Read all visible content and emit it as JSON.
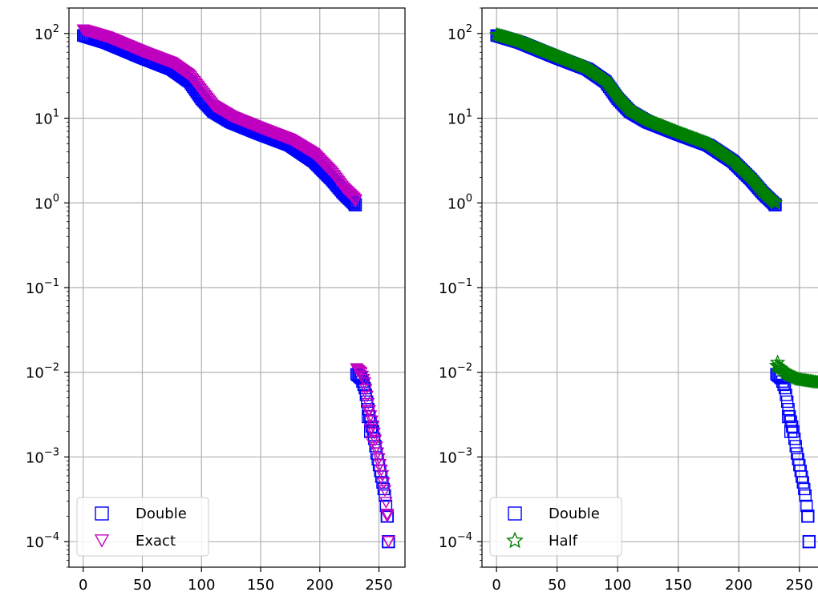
{
  "chart_data": [
    {
      "type": "scatter",
      "xlabel": "",
      "ylabel": "",
      "xlim": [
        -12,
        272
      ],
      "ylim": [
        5e-05,
        200
      ],
      "yscale": "log",
      "grid": true,
      "legend_placement": "lower-left",
      "x_ticks": [
        0,
        50,
        100,
        150,
        200,
        250
      ],
      "y_ticks": [
        {
          "value": 100,
          "base": "10",
          "exp": "2"
        },
        {
          "value": 10,
          "base": "10",
          "exp": "1"
        },
        {
          "value": 1,
          "base": "10",
          "exp": "0"
        },
        {
          "value": 0.1,
          "base": "10",
          "exp": "−1"
        },
        {
          "value": 0.01,
          "base": "10",
          "exp": "−2"
        },
        {
          "value": 0.001,
          "base": "10",
          "exp": "−3"
        },
        {
          "value": 0.0001,
          "base": "10",
          "exp": "−4"
        }
      ],
      "series": [
        {
          "name": "Double",
          "marker": "square-open",
          "color": "#0000ff",
          "curve_knots": [
            [
              0,
              95
            ],
            [
              20,
              78
            ],
            [
              50,
              52
            ],
            [
              75,
              38
            ],
            [
              90,
              27
            ],
            [
              100,
              17
            ],
            [
              110,
              12
            ],
            [
              125,
              9
            ],
            [
              150,
              6.5
            ],
            [
              175,
              4.8
            ],
            [
              195,
              3.1
            ],
            [
              210,
              1.9
            ],
            [
              220,
              1.3
            ],
            [
              230,
              0.95
            ],
            [
              231,
              0.0095
            ],
            [
              235,
              0.0085
            ],
            [
              238,
              0.0065
            ],
            [
              240,
              0.0045
            ],
            [
              242,
              0.003
            ],
            [
              245,
              0.002
            ],
            [
              248,
              0.0011
            ],
            [
              250,
              0.0008
            ],
            [
              253,
              0.0005
            ],
            [
              255,
              0.00035
            ],
            [
              257,
              0.0002
            ],
            [
              258,
              0.0001
            ]
          ],
          "points": [
            [
              230,
              0.95
            ],
            [
              257,
              0.0002
            ],
            [
              258,
              0.0001
            ],
            [
              241,
              0.003
            ],
            [
              243,
              0.002
            ]
          ]
        },
        {
          "name": "Exact",
          "marker": "triangle-down-open",
          "color": "#bf00bf",
          "curve_knots": [
            [
              0,
              110
            ],
            [
              20,
              91
            ],
            [
              50,
              61
            ],
            [
              75,
              45
            ],
            [
              90,
              32
            ],
            [
              100,
              21
            ],
            [
              110,
              14
            ],
            [
              125,
              10.5
            ],
            [
              150,
              7.6
            ],
            [
              175,
              5.6
            ],
            [
              195,
              3.8
            ],
            [
              210,
              2.3
            ],
            [
              220,
              1.5
            ],
            [
              230,
              1.1
            ],
            [
              231,
              0.011
            ],
            [
              235,
              0.0098
            ],
            [
              238,
              0.0075
            ],
            [
              240,
              0.0052
            ],
            [
              242,
              0.0035
            ],
            [
              245,
              0.0023
            ],
            [
              248,
              0.0013
            ],
            [
              250,
              0.00095
            ],
            [
              253,
              0.0006
            ],
            [
              255,
              0.0004
            ],
            [
              257,
              0.00021
            ],
            [
              258,
              0.0001
            ]
          ],
          "points": [
            [
              230,
              1.05
            ],
            [
              257,
              0.0002
            ],
            [
              258,
              0.0001
            ],
            [
              241,
              0.0035
            ],
            [
              243,
              0.0021
            ],
            [
              244,
              0.0015
            ]
          ]
        }
      ]
    },
    {
      "type": "scatter",
      "xlabel": "",
      "ylabel": "",
      "xlim": [
        -12,
        272
      ],
      "ylim": [
        5e-05,
        200
      ],
      "yscale": "log",
      "grid": true,
      "legend_placement": "lower-left",
      "x_ticks": [
        0,
        50,
        100,
        150,
        200,
        250
      ],
      "y_ticks": [
        {
          "value": 100,
          "base": "10",
          "exp": "2"
        },
        {
          "value": 10,
          "base": "10",
          "exp": "1"
        },
        {
          "value": 1,
          "base": "10",
          "exp": "0"
        },
        {
          "value": 0.1,
          "base": "10",
          "exp": "−1"
        },
        {
          "value": 0.01,
          "base": "10",
          "exp": "−2"
        },
        {
          "value": 0.001,
          "base": "10",
          "exp": "−3"
        },
        {
          "value": 0.0001,
          "base": "10",
          "exp": "−4"
        }
      ],
      "series": [
        {
          "name": "Double",
          "marker": "square-open",
          "color": "#0000ff",
          "curve_knots": [
            [
              0,
              95
            ],
            [
              20,
              78
            ],
            [
              50,
              52
            ],
            [
              75,
              38
            ],
            [
              90,
              27
            ],
            [
              100,
              17
            ],
            [
              110,
              12
            ],
            [
              125,
              9
            ],
            [
              150,
              6.5
            ],
            [
              175,
              4.8
            ],
            [
              195,
              3.1
            ],
            [
              210,
              1.9
            ],
            [
              220,
              1.3
            ],
            [
              230,
              0.95
            ],
            [
              231,
              0.0095
            ],
            [
              235,
              0.0085
            ],
            [
              238,
              0.0065
            ],
            [
              240,
              0.0045
            ],
            [
              242,
              0.003
            ],
            [
              245,
              0.002
            ],
            [
              248,
              0.0011
            ],
            [
              250,
              0.0008
            ],
            [
              253,
              0.0005
            ],
            [
              255,
              0.00035
            ],
            [
              257,
              0.0002
            ],
            [
              258,
              0.0001
            ]
          ],
          "points": [
            [
              230,
              0.95
            ],
            [
              257,
              0.0002
            ],
            [
              258,
              0.0001
            ],
            [
              241,
              0.003
            ],
            [
              243,
              0.002
            ]
          ]
        },
        {
          "name": "Half",
          "marker": "star-open",
          "color": "#008000",
          "curve_knots": [
            [
              0,
              97
            ],
            [
              20,
              80
            ],
            [
              50,
              54
            ],
            [
              75,
              39
            ],
            [
              90,
              28
            ],
            [
              100,
              18
            ],
            [
              110,
              12.5
            ],
            [
              125,
              9.4
            ],
            [
              150,
              6.8
            ],
            [
              175,
              5
            ],
            [
              195,
              3.2
            ],
            [
              210,
              2
            ],
            [
              220,
              1.35
            ],
            [
              230,
              1.0
            ],
            [
              231,
              0.012
            ],
            [
              235,
              0.011
            ],
            [
              240,
              0.0095
            ],
            [
              245,
              0.0088
            ],
            [
              250,
              0.0082
            ],
            [
              255,
              0.008
            ],
            [
              260,
              0.0078
            ],
            [
              265,
              0.0076
            ],
            [
              270,
              0.0075
            ]
          ],
          "points": [
            [
              230,
              1.0
            ],
            [
              232,
              0.013
            ]
          ]
        }
      ]
    }
  ]
}
